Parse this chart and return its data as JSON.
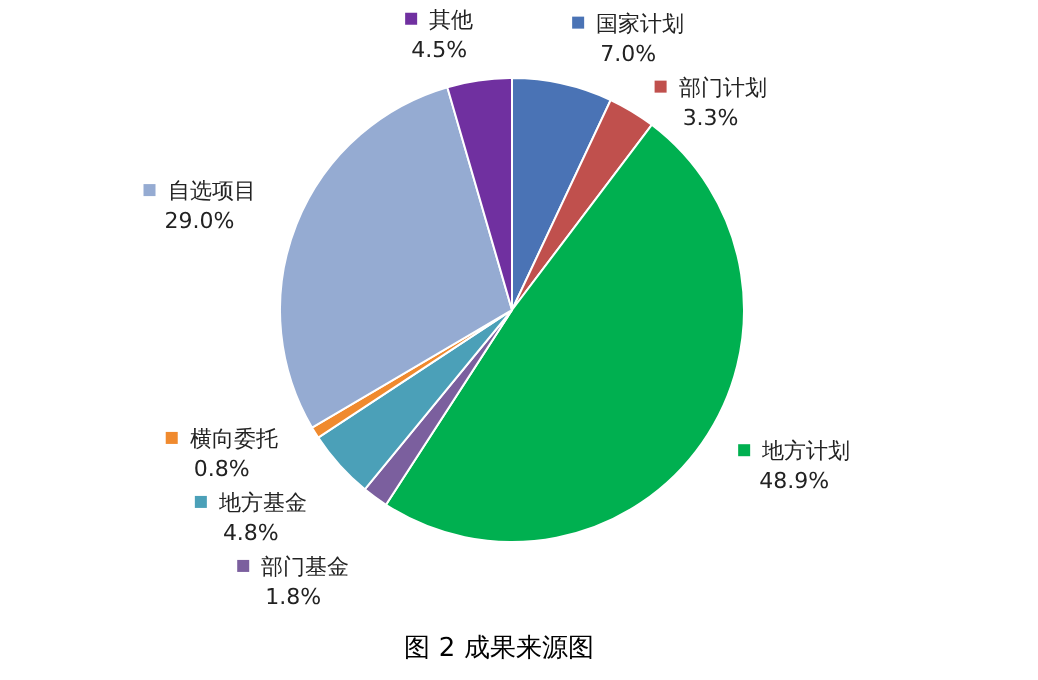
{
  "chart_data": {
    "type": "pie",
    "title": "图 2 成果来源图",
    "categories": [
      "国家计划",
      "部门计划",
      "地方计划",
      "部门基金",
      "地方基金",
      "横向委托",
      "自选项目",
      "其他"
    ],
    "values": [
      7.0,
      3.3,
      48.9,
      1.8,
      4.8,
      0.8,
      29.0,
      4.5
    ],
    "colors": [
      "#4a73b5",
      "#c0504d",
      "#00b050",
      "#7b5f9e",
      "#4ba0b8",
      "#f08a2e",
      "#95abd2",
      "#7030a0"
    ],
    "value_labels": [
      "7.0%",
      "3.3%",
      "48.9%",
      "1.8%",
      "4.8%",
      "0.8%",
      "29.0%",
      "4.5%"
    ],
    "legend": "right"
  }
}
